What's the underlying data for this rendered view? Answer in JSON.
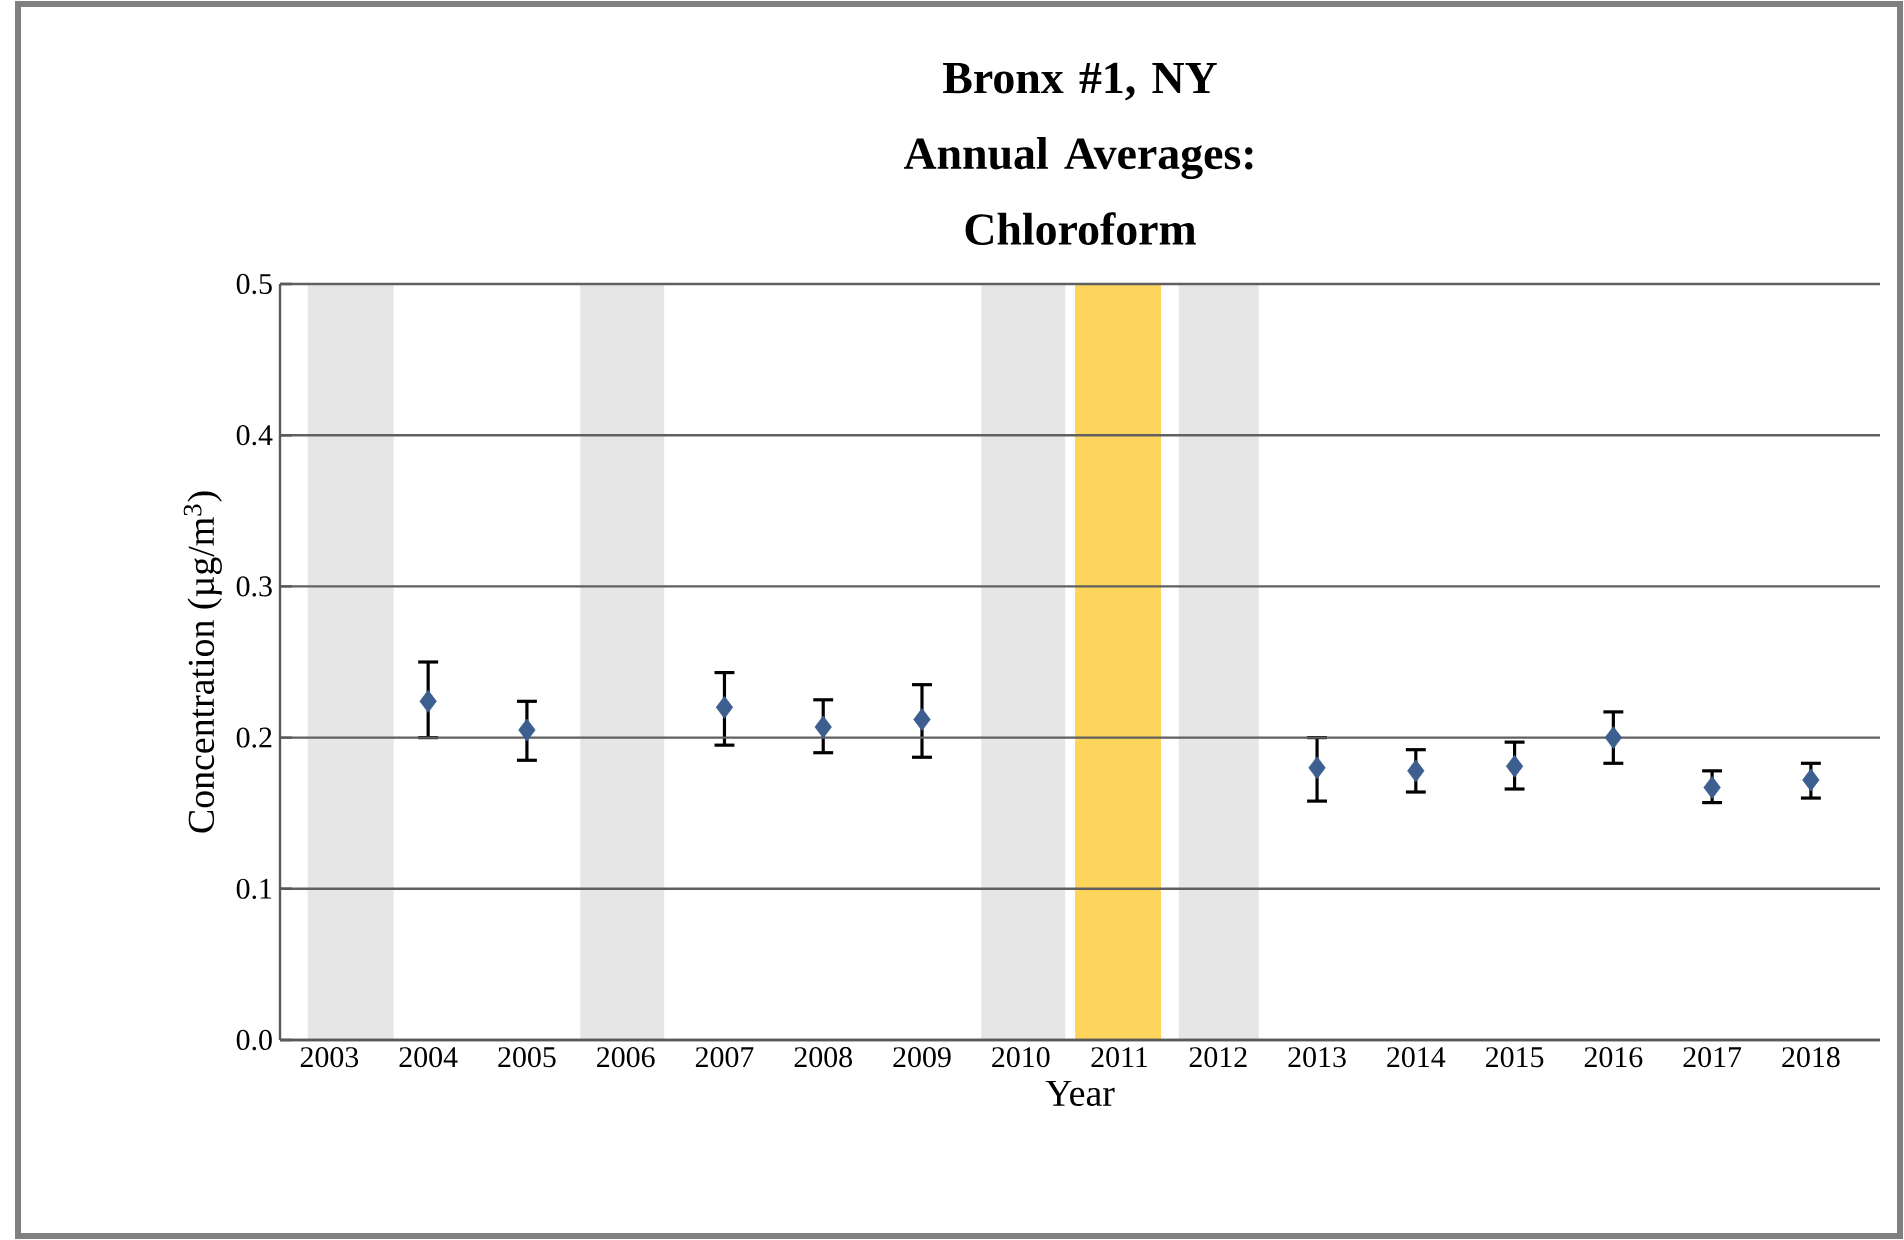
{
  "chart_data": {
    "type": "scatter",
    "title": "Bronx #1, NY",
    "subtitle": "Annual Averages: Chloroform",
    "xlabel": "Year",
    "ylabel": "Concentration (µg/m$^{3}$)",
    "x": [
      2004,
      2005,
      2007,
      2008,
      2009,
      2013,
      2014,
      2015,
      2016,
      2017,
      2018
    ],
    "series": [
      {
        "color": "#3d5f8f",
        "values": [
          0.224,
          0.205,
          0.22,
          0.207,
          0.212,
          0.18,
          0.178,
          0.181,
          0.2,
          0.167,
          0.172
        ],
        "errors": [
          [
            0.2,
            0.25
          ],
          [
            0.185,
            0.224
          ],
          [
            0.195,
            0.243
          ],
          [
            0.19,
            0.225
          ],
          [
            0.187,
            0.235
          ],
          [
            0.158,
            0.2
          ],
          [
            0.164,
            0.192
          ],
          [
            0.166,
            0.197
          ],
          [
            0.183,
            0.217
          ],
          [
            0.157,
            0.178
          ],
          [
            0.16,
            0.183
          ]
        ]
      }
    ],
    "marker": "diamond",
    "grid": "y",
    "legend": false,
    "xlim": [
      2002.5,
      2018.7
    ],
    "xticks": [
      2003,
      2004,
      2005,
      2006,
      2007,
      2008,
      2009,
      2010,
      2011,
      2012,
      2013,
      2014,
      2015,
      2016,
      2017,
      2018
    ],
    "ylim": [
      0,
      0.5
    ],
    "yticks": [
      {
        "value": 0,
        "label": "0.0"
      },
      0.1,
      0.2,
      0.3,
      0.4,
      0.5
    ],
    "bands": [
      {
        "axis": "x",
        "from": 2002.78,
        "to": 2003.65,
        "color": "#e6e6e6"
      },
      {
        "axis": "x",
        "from": 2005.54,
        "to": 2006.39,
        "color": "#e6e6e6"
      },
      {
        "axis": "x",
        "from": 2009.6,
        "to": 2010.45,
        "color": "#e6e6e6"
      },
      {
        "axis": "x",
        "from": 2010.55,
        "to": 2011.42,
        "color": "#fdd55c"
      },
      {
        "axis": "x",
        "from": 2011.6,
        "to": 2012.41,
        "color": "#e6e6e6"
      }
    ]
  }
}
